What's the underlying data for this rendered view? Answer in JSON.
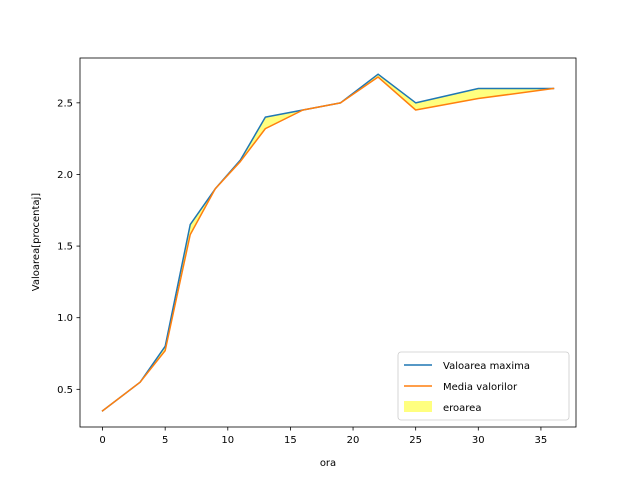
{
  "chart_data": {
    "type": "line",
    "xlabel": "ora",
    "ylabel": "Valoarea[procentaj]",
    "xlim": [
      -1.8,
      37.8
    ],
    "ylim": [
      0.237,
      2.813
    ],
    "xticks": [
      0,
      5,
      10,
      15,
      20,
      25,
      30,
      35
    ],
    "yticks": [
      0.5,
      1.0,
      1.5,
      2.0,
      2.5
    ],
    "ytick_labels": [
      "0.5",
      "1.0",
      "1.5",
      "2.0",
      "2.5"
    ],
    "x": [
      0,
      3,
      5,
      7,
      9,
      11,
      13,
      16,
      19,
      22,
      25,
      30,
      36
    ],
    "series": [
      {
        "name": "Valoarea maxima",
        "color": "#1f77b4",
        "values": [
          0.35,
          0.55,
          0.8,
          1.65,
          1.9,
          2.1,
          2.4,
          2.45,
          2.5,
          2.7,
          2.5,
          2.6,
          2.6
        ]
      },
      {
        "name": "Media valorilor",
        "color": "#ff7f0e",
        "values": [
          0.35,
          0.55,
          0.77,
          1.58,
          1.9,
          2.09,
          2.32,
          2.45,
          2.5,
          2.68,
          2.45,
          2.53,
          2.6
        ]
      }
    ],
    "fill": {
      "name": "eroarea",
      "color": "#ffff00",
      "opacity": 0.5
    },
    "legend_position": "lower-right",
    "grid": false
  }
}
